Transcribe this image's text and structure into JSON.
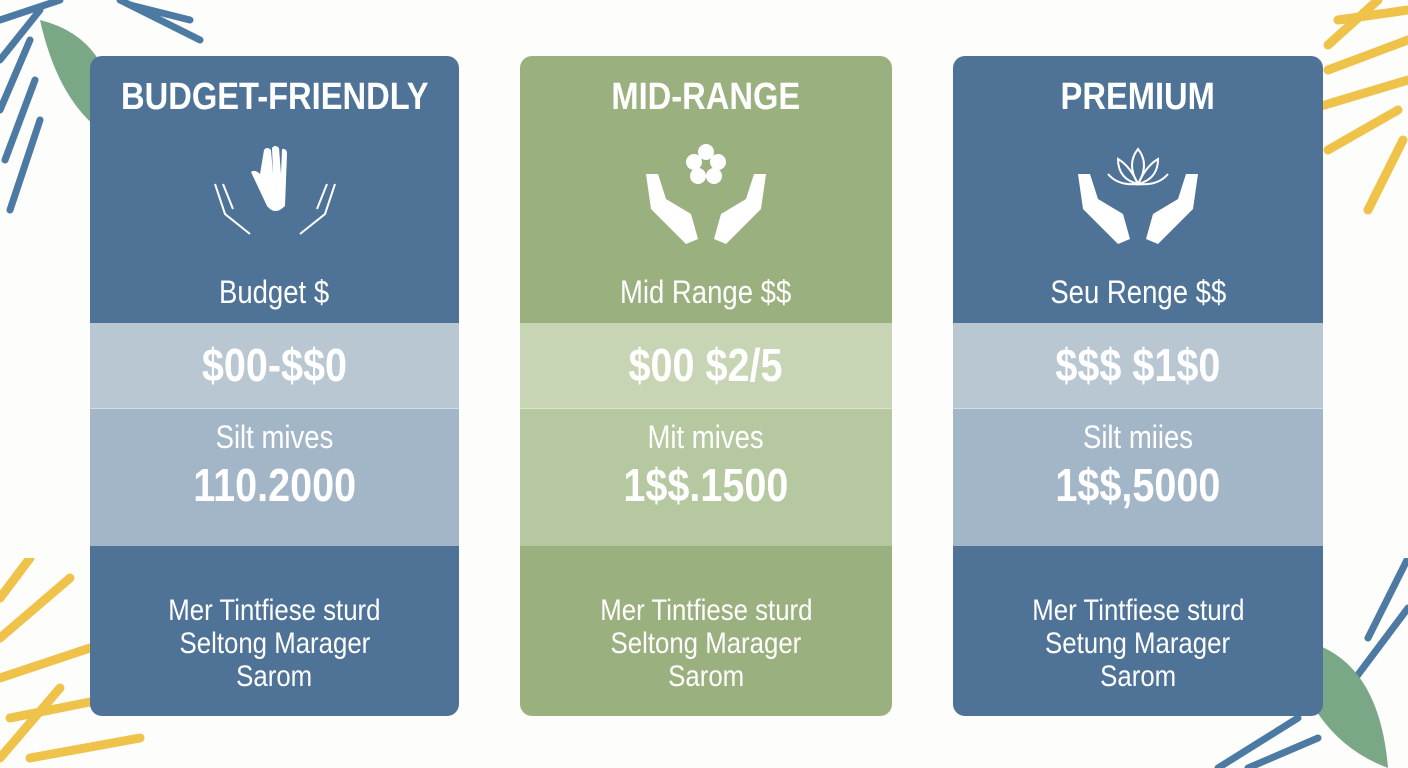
{
  "colors": {
    "blue": "#4e7397",
    "green": "#9bb07f",
    "leaf_yellow": "#efc24a",
    "leaf_green": "#7aa886",
    "leaf_blue": "#4d7aa3"
  },
  "cards": [
    {
      "title": "BUDGET-FRIENDLY",
      "icon": "open-hand-icon",
      "subtitle": "Budget $",
      "price": "$00-$$0",
      "info_label": "Silt mives",
      "info_value": "110.2000",
      "desc": [
        "Mer Tintfiese sturd",
        "Seltong Marager",
        "Sarom"
      ]
    },
    {
      "title": "MID-RANGE",
      "icon": "flower-hands-icon",
      "subtitle": "Mid Range $$",
      "price": "$00 $2/5",
      "info_label": "Mit mives",
      "info_value": "1$$.1500",
      "desc": [
        "Mer Tintfiese sturd",
        "Seltong Marager",
        "Sarom"
      ]
    },
    {
      "title": "PREMIUM",
      "icon": "lotus-hands-icon",
      "subtitle": "Seu Renge $$",
      "price": "$$$ $1$0",
      "info_label": "Silt miies",
      "info_value": "1$$,5000",
      "desc": [
        "Mer Tintfiese sturd",
        "Setung Marager",
        "Sarom"
      ]
    }
  ]
}
